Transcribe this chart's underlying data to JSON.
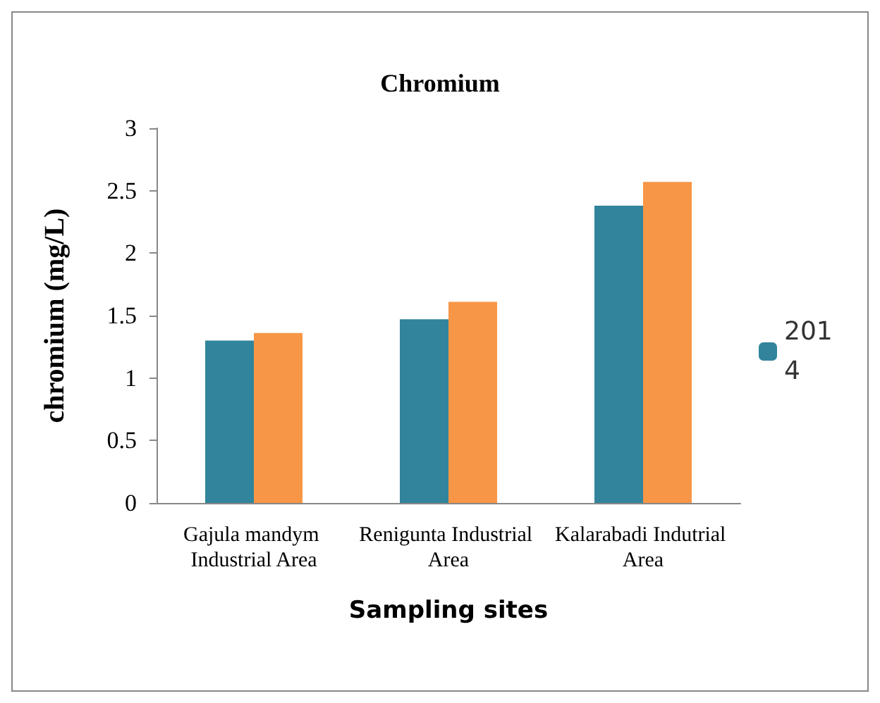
{
  "chart_data": {
    "type": "bar",
    "title": "Chromium",
    "xlabel": "Sampling sites",
    "ylabel": "chromium (mg/L)",
    "categories": [
      "Gajula mandym Industrial Area",
      "Renigunta Industrial Area",
      "Kalarabadi Indutrial Area"
    ],
    "series": [
      {
        "name": "2014",
        "color": "#31849b",
        "values": [
          1.3,
          1.47,
          2.38
        ]
      },
      {
        "color": "#f79646",
        "values": [
          1.36,
          1.61,
          2.57
        ]
      }
    ],
    "ylim": [
      0,
      3
    ],
    "yticks": [
      0,
      0.5,
      1,
      1.5,
      2,
      2.5,
      3
    ],
    "grid": false,
    "legend": "right"
  }
}
